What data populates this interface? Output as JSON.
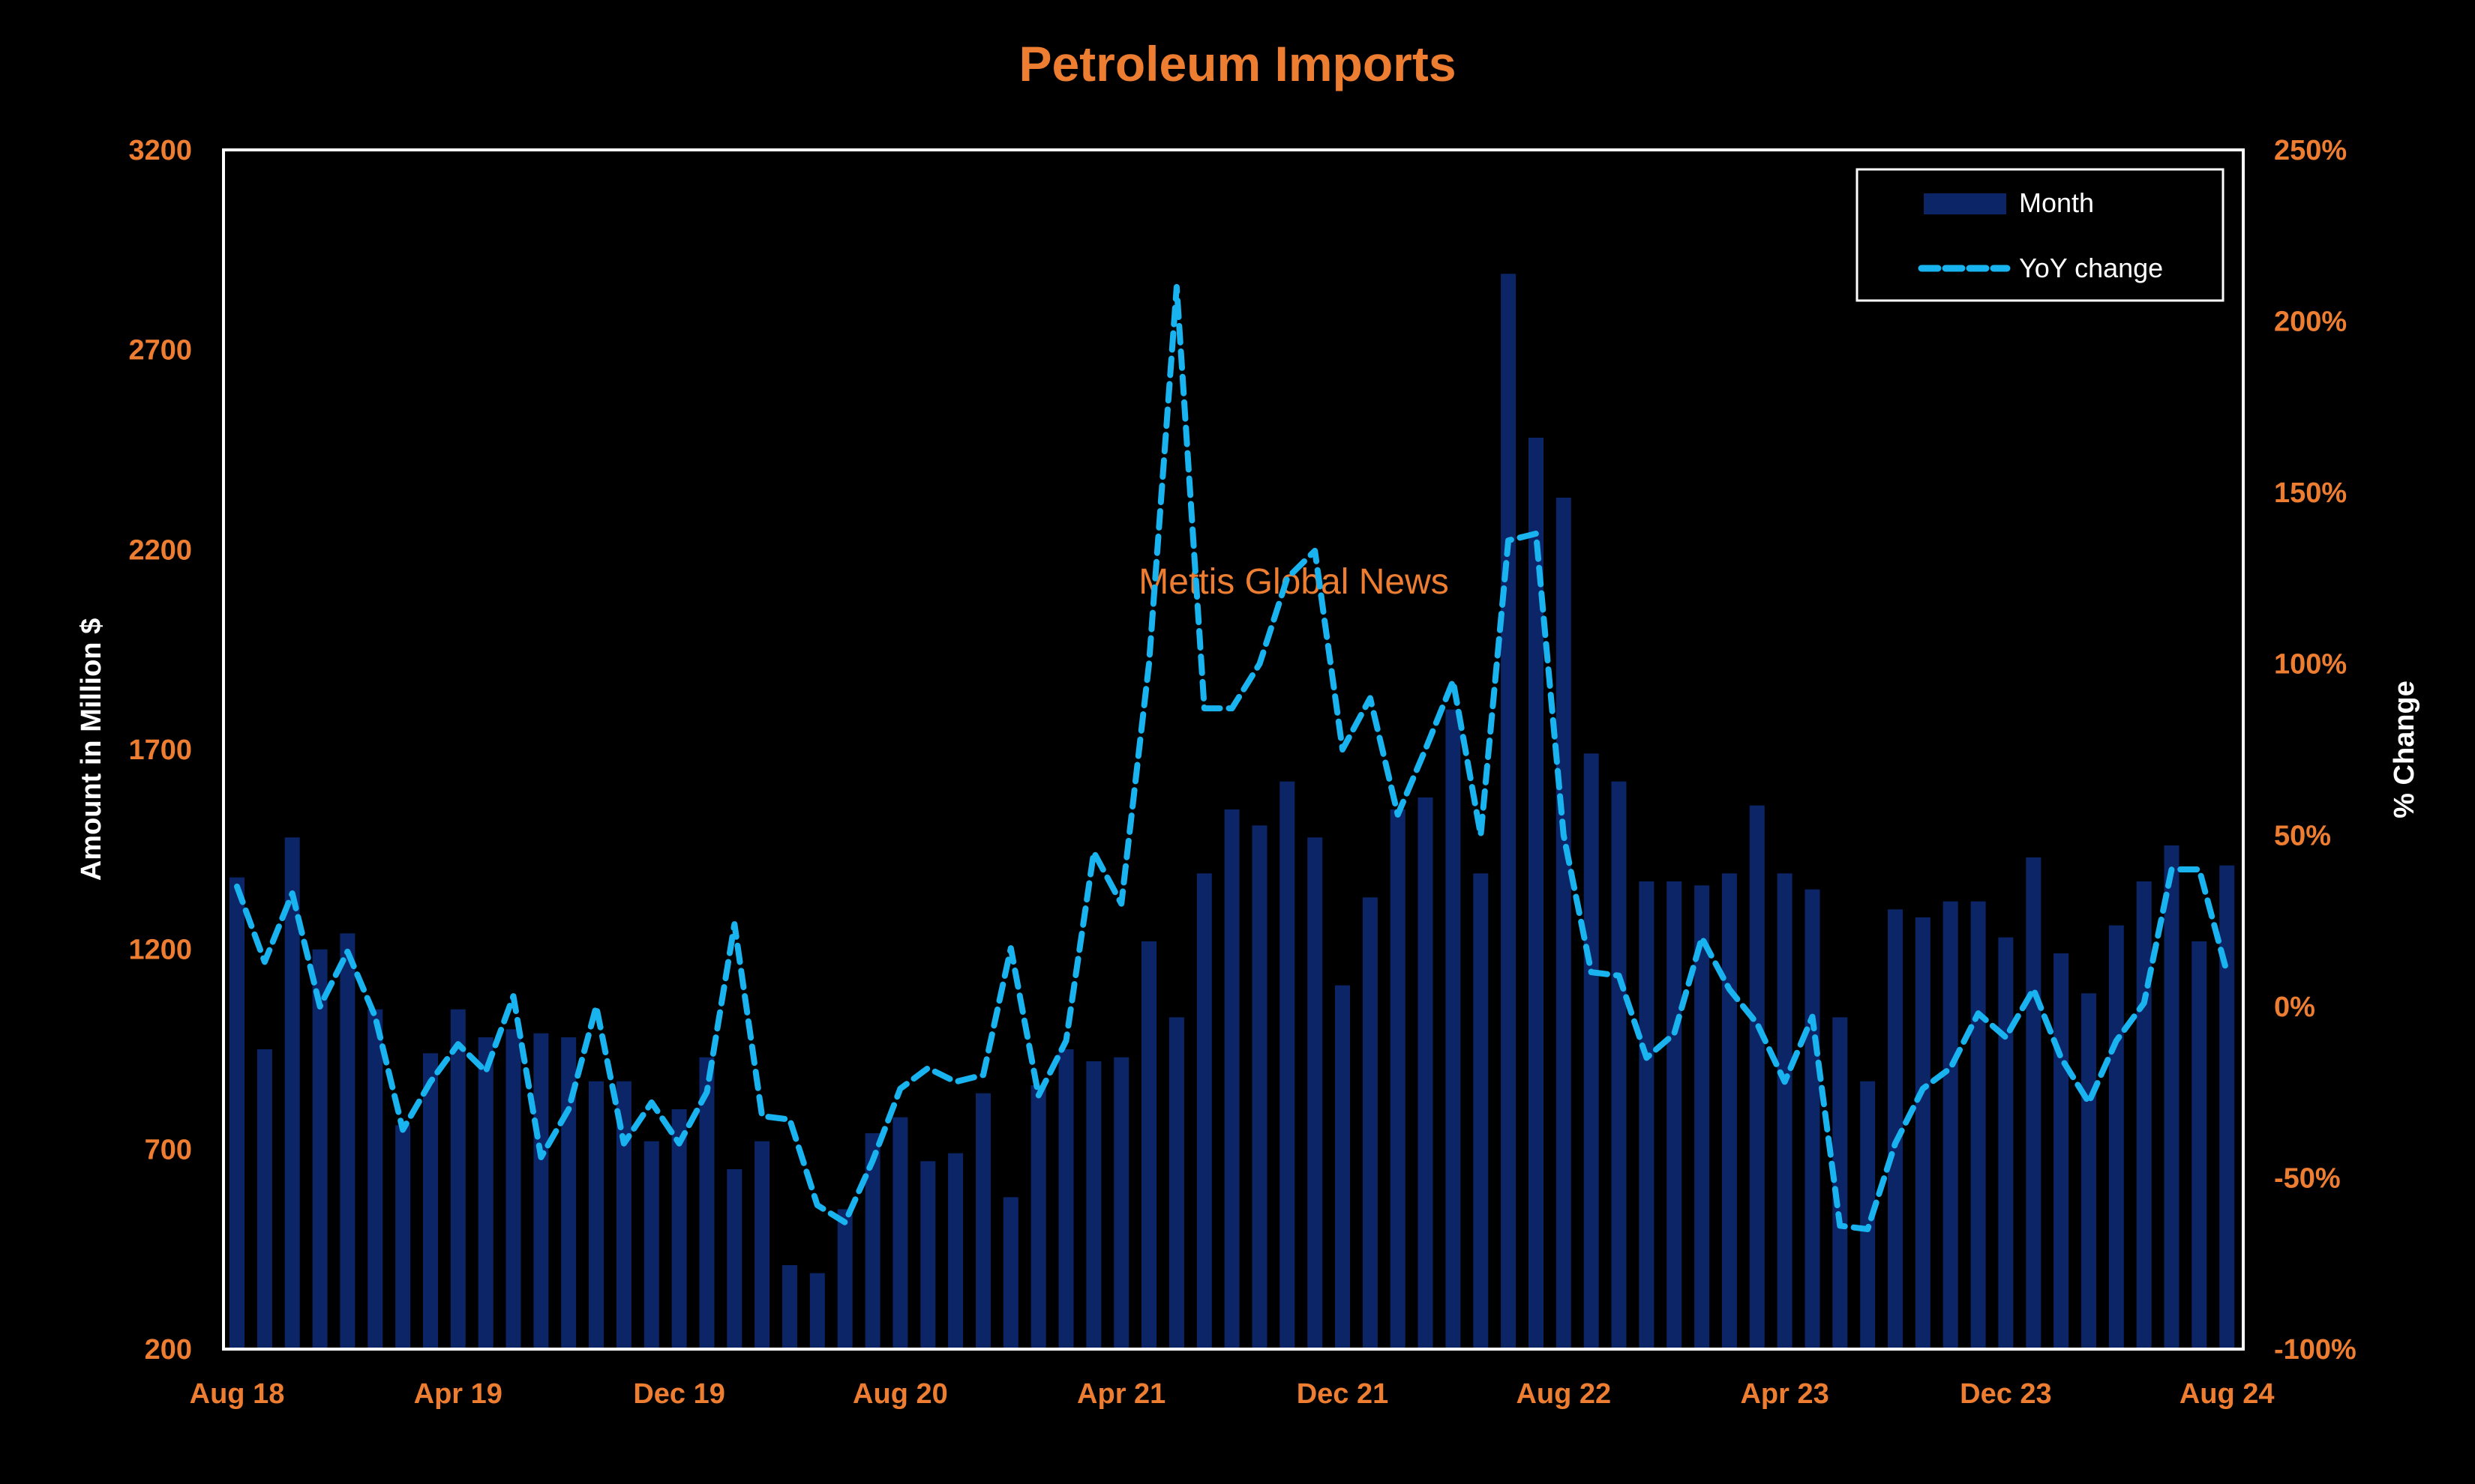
{
  "chart_data": {
    "type": "bar+line",
    "title": "Petroleum Imports",
    "ylabel_left": "Amount in Million $",
    "ylabel_right": "% Change",
    "watermark": "Mettis Global News",
    "ylim_left": [
      200,
      3200
    ],
    "ylim_right": [
      -100,
      250
    ],
    "yticks_left": [
      "3200",
      "2700",
      "2200",
      "1700",
      "1200",
      "700",
      "200"
    ],
    "yticks_right": [
      "250%",
      "200%",
      "150%",
      "100%",
      "50%",
      "0%",
      "-50%",
      "-100%"
    ],
    "yticks_left_values": [
      3200,
      2700,
      2200,
      1700,
      1200,
      700,
      200
    ],
    "yticks_right_values": [
      250,
      200,
      150,
      100,
      50,
      0,
      -50,
      -100
    ],
    "xticks": [
      "Aug 18",
      "Apr 19",
      "Dec 19",
      "Aug 20",
      "Apr 21",
      "Dec 21",
      "Aug 22",
      "Apr 23",
      "Dec 23",
      "Aug 24"
    ],
    "xtick_indices": [
      0,
      8,
      16,
      24,
      32,
      40,
      48,
      56,
      64,
      72
    ],
    "legend": {
      "placement": "top-right",
      "items": [
        "Month",
        "YoY change"
      ]
    },
    "colors": {
      "bar": "#0B2566",
      "line": "#19B3F0",
      "text_accent": "#ED7D31",
      "background": "#000000",
      "frame": "#FFFFFF"
    },
    "series": [
      {
        "name": "Month",
        "type": "bar",
        "values": [
          1380,
          950,
          1480,
          1200,
          1240,
          1050,
          760,
          940,
          1050,
          980,
          1000,
          990,
          980,
          870,
          870,
          720,
          800,
          930,
          650,
          720,
          410,
          390,
          550,
          740,
          780,
          670,
          690,
          840,
          580,
          860,
          950,
          920,
          930,
          1220,
          1030,
          1390,
          1550,
          1510,
          1620,
          1480,
          1110,
          1330,
          1550,
          1580,
          1800,
          1390,
          2890,
          2480,
          2330,
          1690,
          1620,
          1370,
          1370,
          1360,
          1390,
          1560,
          1390,
          1350,
          1030,
          870,
          1300,
          1280,
          1320,
          1320,
          1230,
          1430,
          1190,
          1090,
          1260,
          1370,
          1460,
          1220,
          1410
        ]
      },
      {
        "name": "YoY change",
        "type": "line",
        "style": "dashed",
        "values": [
          35,
          13,
          33,
          0,
          16,
          -3,
          -36,
          -22,
          -11,
          -19,
          3,
          -44,
          -30,
          0,
          -40,
          -28,
          -40,
          -25,
          24,
          -32,
          -33,
          -58,
          -63,
          -45,
          -24,
          -18,
          -22,
          -20,
          17,
          -26,
          -10,
          45,
          30,
          100,
          210,
          87,
          87,
          100,
          125,
          133,
          75,
          90,
          56,
          75,
          95,
          50,
          136,
          138,
          50,
          10,
          9,
          -15,
          -8,
          20,
          5,
          -5,
          -22,
          -3,
          -64,
          -65,
          -40,
          -24,
          -18,
          -2,
          -9,
          5,
          -15,
          -28,
          -10,
          1,
          40,
          40,
          10
        ]
      }
    ]
  }
}
